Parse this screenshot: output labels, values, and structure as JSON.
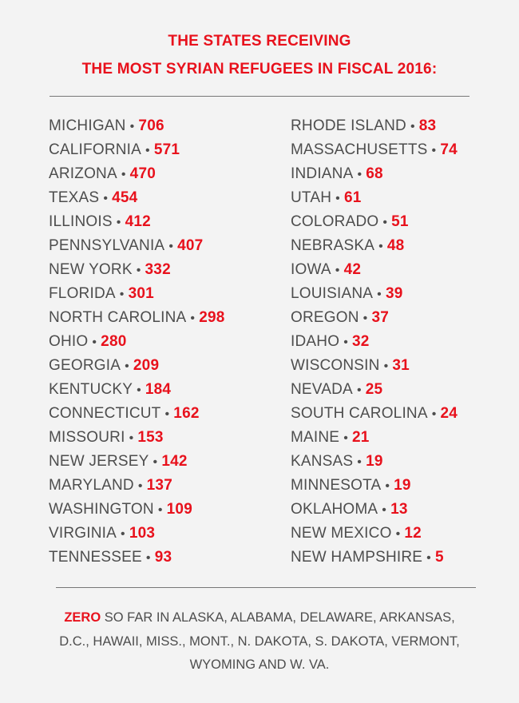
{
  "title": {
    "line1": "THE STATES RECEIVING",
    "line2": "THE MOST SYRIAN REFUGEES IN FISCAL 2016:"
  },
  "separator": "•",
  "left_column": [
    {
      "state": "MICHIGAN",
      "value": "706"
    },
    {
      "state": "CALIFORNIA",
      "value": "571"
    },
    {
      "state": "ARIZONA",
      "value": "470"
    },
    {
      "state": "TEXAS",
      "value": "454"
    },
    {
      "state": "ILLINOIS",
      "value": "412"
    },
    {
      "state": "PENNSYLVANIA",
      "value": "407"
    },
    {
      "state": "NEW YORK",
      "value": "332"
    },
    {
      "state": "FLORIDA",
      "value": "301"
    },
    {
      "state": "NORTH CAROLINA",
      "value": "298"
    },
    {
      "state": "OHIO",
      "value": "280"
    },
    {
      "state": "GEORGIA",
      "value": "209"
    },
    {
      "state": "KENTUCKY",
      "value": "184"
    },
    {
      "state": "CONNECTICUT",
      "value": "162"
    },
    {
      "state": "MISSOURI",
      "value": "153"
    },
    {
      "state": "NEW JERSEY",
      "value": "142"
    },
    {
      "state": "MARYLAND",
      "value": "137"
    },
    {
      "state": "WASHINGTON",
      "value": "109"
    },
    {
      "state": "VIRGINIA",
      "value": "103"
    },
    {
      "state": "TENNESSEE",
      "value": "93"
    }
  ],
  "right_column": [
    {
      "state": "RHODE ISLAND",
      "value": "83"
    },
    {
      "state": "MASSACHUSETTS",
      "value": "74"
    },
    {
      "state": "INDIANA",
      "value": "68"
    },
    {
      "state": "UTAH",
      "value": "61"
    },
    {
      "state": "COLORADO",
      "value": "51"
    },
    {
      "state": "NEBRASKA",
      "value": "48"
    },
    {
      "state": "IOWA",
      "value": "42"
    },
    {
      "state": "LOUISIANA",
      "value": "39"
    },
    {
      "state": "OREGON",
      "value": "37"
    },
    {
      "state": "IDAHO",
      "value": "32"
    },
    {
      "state": "WISCONSIN",
      "value": "31"
    },
    {
      "state": "NEVADA",
      "value": "25"
    },
    {
      "state": "SOUTH CAROLINA",
      "value": "24"
    },
    {
      "state": "MAINE",
      "value": "21"
    },
    {
      "state": "KANSAS",
      "value": "19"
    },
    {
      "state": "MINNESOTA",
      "value": "19"
    },
    {
      "state": "OKLAHOMA",
      "value": "13"
    },
    {
      "state": "NEW MEXICO",
      "value": "12"
    },
    {
      "state": "NEW HAMPSHIRE",
      "value": "5"
    }
  ],
  "footnote": {
    "highlight": "ZERO",
    "line1": "SO FAR IN ALASKA, ALABAMA, DELAWARE, ARKANSAS,",
    "line2": "D.C., HAWAII, MISS., MONT., N. DAKOTA, S. DAKOTA, VERMONT,",
    "line3": "WYOMING AND W. VA."
  },
  "colors": {
    "accent_red": "#e8111c",
    "text_gray": "#4d4d4d",
    "background": "#f3f3f3",
    "rule_gray": "#777777"
  }
}
